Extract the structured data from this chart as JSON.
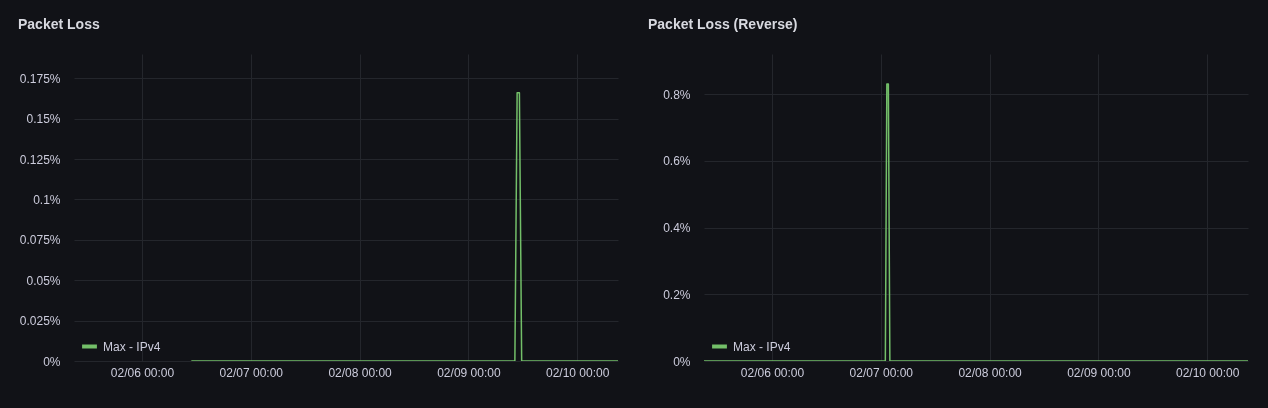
{
  "chart_data": [
    {
      "type": "line",
      "title": "Packet Loss",
      "legend": "bottom left",
      "grid": true,
      "marker": "none",
      "line_style": "solid",
      "xlim": [
        "--02-05T09:00",
        "--02-10T09:00"
      ],
      "xticks": [
        {
          "value": "--02-06T00:00",
          "label": "02/06 00:00"
        },
        {
          "value": "--02-07T00:00",
          "label": "02/07 00:00"
        },
        {
          "value": "--02-08T00:00",
          "label": "02/08 00:00"
        },
        {
          "value": "--02-09T00:00",
          "label": "02/09 00:00"
        },
        {
          "value": "--02-10T00:00",
          "label": "02/10 00:00"
        }
      ],
      "ylim": [
        0,
        0.19
      ],
      "yticks": [
        {
          "value": 0,
          "label": "0%"
        },
        {
          "value": 0.025,
          "label": "0.025%"
        },
        {
          "value": 0.05,
          "label": "0.05%"
        },
        {
          "value": 0.075,
          "label": "0.075%"
        },
        {
          "value": 0.1,
          "label": "0.1%"
        },
        {
          "value": 0.125,
          "label": "0.125%"
        },
        {
          "value": 0.15,
          "label": "0.15%"
        },
        {
          "value": 0.175,
          "label": "0.175%"
        }
      ],
      "series": [
        {
          "name": "Max - IPv4",
          "color": "#73bf69",
          "x": [
            "--02-06T11:00",
            "--02-09T10:15",
            "--02-09T10:45",
            "--02-09T11:15",
            "--02-09T11:45",
            "--02-10T09:00"
          ],
          "values": [
            0,
            0,
            0.166,
            0.166,
            0,
            0
          ]
        }
      ]
    },
    {
      "type": "line",
      "title": "Packet Loss (Reverse)",
      "legend": "bottom left",
      "grid": true,
      "marker": "none",
      "line_style": "solid",
      "xlim": [
        "--02-05T09:00",
        "--02-10T09:00"
      ],
      "xticks": [
        {
          "value": "--02-06T00:00",
          "label": "02/06 00:00"
        },
        {
          "value": "--02-07T00:00",
          "label": "02/07 00:00"
        },
        {
          "value": "--02-08T00:00",
          "label": "02/08 00:00"
        },
        {
          "value": "--02-09T00:00",
          "label": "02/09 00:00"
        },
        {
          "value": "--02-10T00:00",
          "label": "02/10 00:00"
        }
      ],
      "ylim": [
        0,
        0.92
      ],
      "yticks": [
        {
          "value": 0,
          "label": "0%"
        },
        {
          "value": 0.2,
          "label": "0.2%"
        },
        {
          "value": 0.4,
          "label": "0.4%"
        },
        {
          "value": 0.6,
          "label": "0.6%"
        },
        {
          "value": 0.8,
          "label": "0.8%"
        }
      ],
      "series": [
        {
          "name": "Max - IPv4",
          "color": "#73bf69",
          "x": [
            "--02-05T09:00",
            "--02-07T01:00",
            "--02-07T01:20",
            "--02-07T01:40",
            "--02-07T02:00",
            "--02-10T09:00"
          ],
          "values": [
            0,
            0,
            0.83,
            0.83,
            0,
            0
          ]
        }
      ]
    }
  ]
}
